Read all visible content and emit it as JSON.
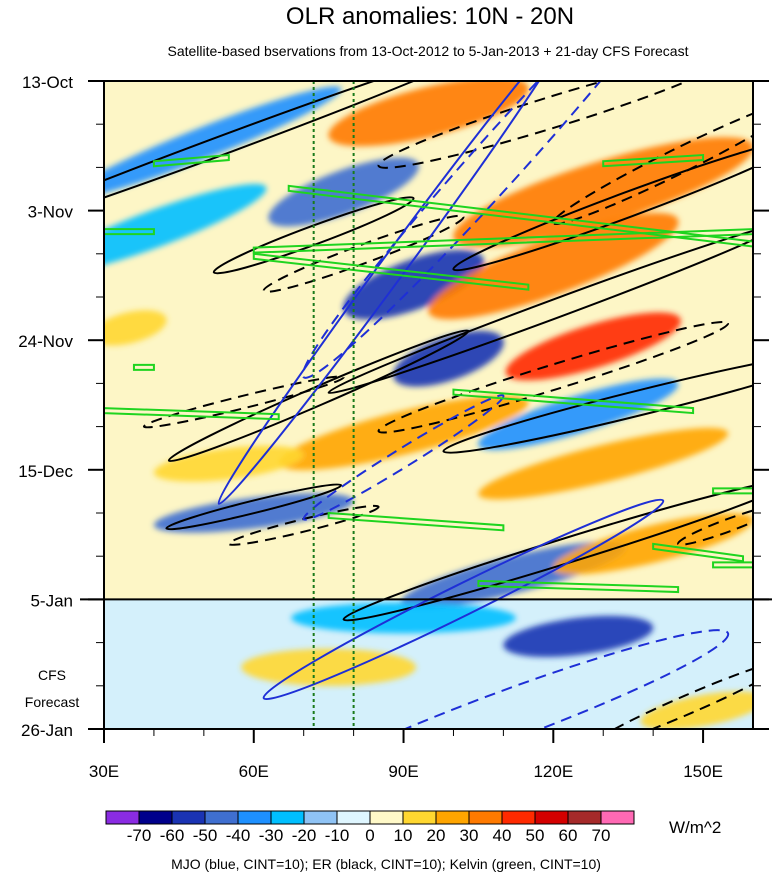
{
  "chart_data": {
    "type": "heatmap",
    "title": "OLR anomalies: 10N - 20N",
    "subtitle": "Satellite-based bservations from 13-Oct-2012 to 5-Jan-2013 + 21-day CFS Forecast",
    "x_ticks": [
      {
        "value": 30,
        "label": "30E"
      },
      {
        "value": 60,
        "label": "60E"
      },
      {
        "value": 90,
        "label": "90E"
      },
      {
        "value": 120,
        "label": "120E"
      },
      {
        "value": 150,
        "label": "150E"
      }
    ],
    "xlim": [
      30,
      160
    ],
    "ylim_days": [
      0,
      105
    ],
    "y_ticks": [
      {
        "day": 0,
        "label": "13-Oct"
      },
      {
        "day": 21,
        "label": "3-Nov"
      },
      {
        "day": 42,
        "label": "24-Nov"
      },
      {
        "day": 63,
        "label": "15-Dec"
      },
      {
        "day": 84,
        "label": "5-Jan"
      },
      {
        "day": 105,
        "label": "26-Jan"
      }
    ],
    "forecast_start_day": 84,
    "forecast_label_line1": "CFS",
    "forecast_label_line2": "Forecast",
    "reference_lines_lon": [
      72,
      80
    ],
    "colorbar": {
      "levels": [
        -70,
        -60,
        -50,
        -40,
        -30,
        -20,
        -10,
        0,
        10,
        20,
        30,
        40,
        50,
        60,
        70
      ],
      "labels": [
        "-70",
        "-60",
        "-50",
        "-40",
        "-30",
        "-20",
        "-10",
        "0",
        "10",
        "20",
        "30",
        "40",
        "50",
        "60",
        "70"
      ],
      "colors": [
        "#8a2be2",
        "#00008b",
        "#1a33b3",
        "#3f6fd0",
        "#1e90ff",
        "#00bfff",
        "#8fc3f5",
        "#dff6ff",
        "#fff9c8",
        "#ffd730",
        "#ffa500",
        "#ff7a00",
        "#ff2a00",
        "#d40000",
        "#a52a2a",
        "#ff69b4"
      ],
      "units": "W/m^2"
    },
    "legend": "MJO (blue, CINT=10); ER (black, CINT=10); Kelvin (green, CINT=10)",
    "anomaly_features": [
      {
        "lon": 50,
        "day": 10,
        "value": -35,
        "len": 55,
        "slope": -0.32,
        "w": 5
      },
      {
        "lon": 40,
        "day": 24,
        "value": -25,
        "len": 45,
        "slope": -0.3,
        "w": 6
      },
      {
        "lon": 78,
        "day": 18,
        "value": -45,
        "len": 30,
        "slope": -0.3,
        "w": 7
      },
      {
        "lon": 92,
        "day": 33,
        "value": -60,
        "len": 28,
        "slope": -0.3,
        "w": 8
      },
      {
        "lon": 99,
        "day": 45,
        "value": -55,
        "len": 22,
        "slope": -0.28,
        "w": 7
      },
      {
        "lon": 125,
        "day": 54,
        "value": -40,
        "len": 40,
        "slope": -0.25,
        "w": 6
      },
      {
        "lon": 60,
        "day": 70,
        "value": -45,
        "len": 40,
        "slope": -0.1,
        "w": 5
      },
      {
        "lon": 112,
        "day": 80,
        "value": -50,
        "len": 45,
        "slope": -0.2,
        "w": 6
      },
      {
        "lon": 125,
        "day": 90,
        "value": -55,
        "len": 30,
        "slope": -0.1,
        "w": 6
      },
      {
        "lon": 90,
        "day": 87,
        "value": -30,
        "len": 45,
        "slope": 0.0,
        "w": 5
      },
      {
        "lon": 95,
        "day": 5,
        "value": 30,
        "len": 40,
        "slope": -0.2,
        "w": 8
      },
      {
        "lon": 130,
        "day": 18,
        "value": 30,
        "len": 60,
        "slope": -0.25,
        "w": 10
      },
      {
        "lon": 120,
        "day": 30,
        "value": 35,
        "len": 50,
        "slope": -0.3,
        "w": 9
      },
      {
        "lon": 128,
        "day": 43,
        "value": 48,
        "len": 35,
        "slope": -0.25,
        "w": 7
      },
      {
        "lon": 90,
        "day": 57,
        "value": 28,
        "len": 50,
        "slope": -0.2,
        "w": 7
      },
      {
        "lon": 130,
        "day": 62,
        "value": 28,
        "len": 50,
        "slope": -0.2,
        "w": 6
      },
      {
        "lon": 140,
        "day": 75,
        "value": 22,
        "len": 40,
        "slope": -0.2,
        "w": 6
      },
      {
        "lon": 75,
        "day": 95,
        "value": 12,
        "len": 35,
        "slope": 0.0,
        "w": 6
      },
      {
        "lon": 55,
        "day": 62,
        "value": 15,
        "len": 30,
        "slope": -0.1,
        "w": 5
      },
      {
        "lon": 150,
        "day": 102,
        "value": 18,
        "len": 25,
        "slope": -0.15,
        "w": 5
      },
      {
        "lon": 35,
        "day": 40,
        "value": 12,
        "len": 15,
        "slope": -0.2,
        "w": 5
      }
    ],
    "mjo_contours": [
      {
        "lon": 88,
        "day": 30,
        "len": 70,
        "slope": -1.1,
        "w": 4,
        "dash": false
      },
      {
        "lon": 110,
        "day": 12,
        "len": 80,
        "slope": -0.9,
        "w": 8,
        "dash": true
      },
      {
        "lon": 102,
        "day": 84,
        "len": 80,
        "slope": -0.4,
        "w": 5,
        "dash": false
      },
      {
        "lon": 110,
        "day": 103,
        "len": 90,
        "slope": -0.3,
        "w": 8,
        "dash": true
      },
      {
        "lon": 90,
        "day": 61,
        "len": 40,
        "slope": -0.5,
        "w": 3,
        "dash": true
      }
    ],
    "er_contours": [
      {
        "lon": 55,
        "day": 10,
        "len": 100,
        "slope": -0.3,
        "w": 3,
        "dash": false
      },
      {
        "lon": 120,
        "day": 5,
        "len": 70,
        "slope": -0.25,
        "w": 5,
        "dash": true
      },
      {
        "lon": 135,
        "day": 20,
        "len": 70,
        "slope": -0.3,
        "w": 4,
        "dash": false
      },
      {
        "lon": 145,
        "day": 13,
        "len": 50,
        "slope": -0.4,
        "w": 4,
        "dash": true
      },
      {
        "lon": 72,
        "day": 25,
        "len": 40,
        "slope": -0.3,
        "w": 3,
        "dash": false
      },
      {
        "lon": 82,
        "day": 28,
        "len": 40,
        "slope": -0.3,
        "w": 3,
        "dash": true
      },
      {
        "lon": 120,
        "day": 37,
        "len": 90,
        "slope": -0.3,
        "w": 3,
        "dash": false
      },
      {
        "lon": 120,
        "day": 48,
        "len": 70,
        "slope": -0.25,
        "w": 4,
        "dash": true
      },
      {
        "lon": 73,
        "day": 51,
        "len": 60,
        "slope": -0.35,
        "w": 3,
        "dash": false
      },
      {
        "lon": 58,
        "day": 52,
        "len": 40,
        "slope": -0.2,
        "w": 2,
        "dash": true
      },
      {
        "lon": 138,
        "day": 52,
        "len": 80,
        "slope": -0.2,
        "w": 4,
        "dash": false
      },
      {
        "lon": 60,
        "day": 69,
        "len": 35,
        "slope": -0.2,
        "w": 2,
        "dash": false
      },
      {
        "lon": 70,
        "day": 72,
        "len": 30,
        "slope": -0.2,
        "w": 2,
        "dash": true
      },
      {
        "lon": 123,
        "day": 76,
        "len": 90,
        "slope": -0.25,
        "w": 4,
        "dash": false
      },
      {
        "lon": 155,
        "day": 72,
        "len": 20,
        "slope": -0.3,
        "w": 2,
        "dash": true
      },
      {
        "lon": 147,
        "day": 101,
        "len": 40,
        "slope": -0.35,
        "w": 3,
        "dash": true
      }
    ],
    "kelvin_contours": [
      {
        "lon1": 40,
        "day1": 13,
        "lon2": 55,
        "day2": 12
      },
      {
        "lon1": 67,
        "day1": 17,
        "lon2": 160,
        "day2": 26
      },
      {
        "lon1": 60,
        "day1": 27,
        "lon2": 160,
        "day2": 24
      },
      {
        "lon1": 60,
        "day1": 28,
        "lon2": 115,
        "day2": 33
      },
      {
        "lon1": 30,
        "day1": 24,
        "lon2": 40,
        "day2": 24
      },
      {
        "lon1": 30,
        "day1": 53,
        "lon2": 65,
        "day2": 54
      },
      {
        "lon1": 36,
        "day1": 46,
        "lon2": 40,
        "day2": 46
      },
      {
        "lon1": 100,
        "day1": 50,
        "lon2": 148,
        "day2": 53
      },
      {
        "lon1": 130,
        "day1": 13,
        "lon2": 150,
        "day2": 12
      },
      {
        "lon1": 75,
        "day1": 70,
        "lon2": 110,
        "day2": 72
      },
      {
        "lon1": 140,
        "day1": 75,
        "lon2": 158,
        "day2": 77
      },
      {
        "lon1": 105,
        "day1": 81,
        "lon2": 145,
        "day2": 82
      },
      {
        "lon1": 152,
        "day1": 66,
        "lon2": 160,
        "day2": 66
      },
      {
        "lon1": 152,
        "day1": 78,
        "lon2": 160,
        "day2": 78
      }
    ]
  }
}
